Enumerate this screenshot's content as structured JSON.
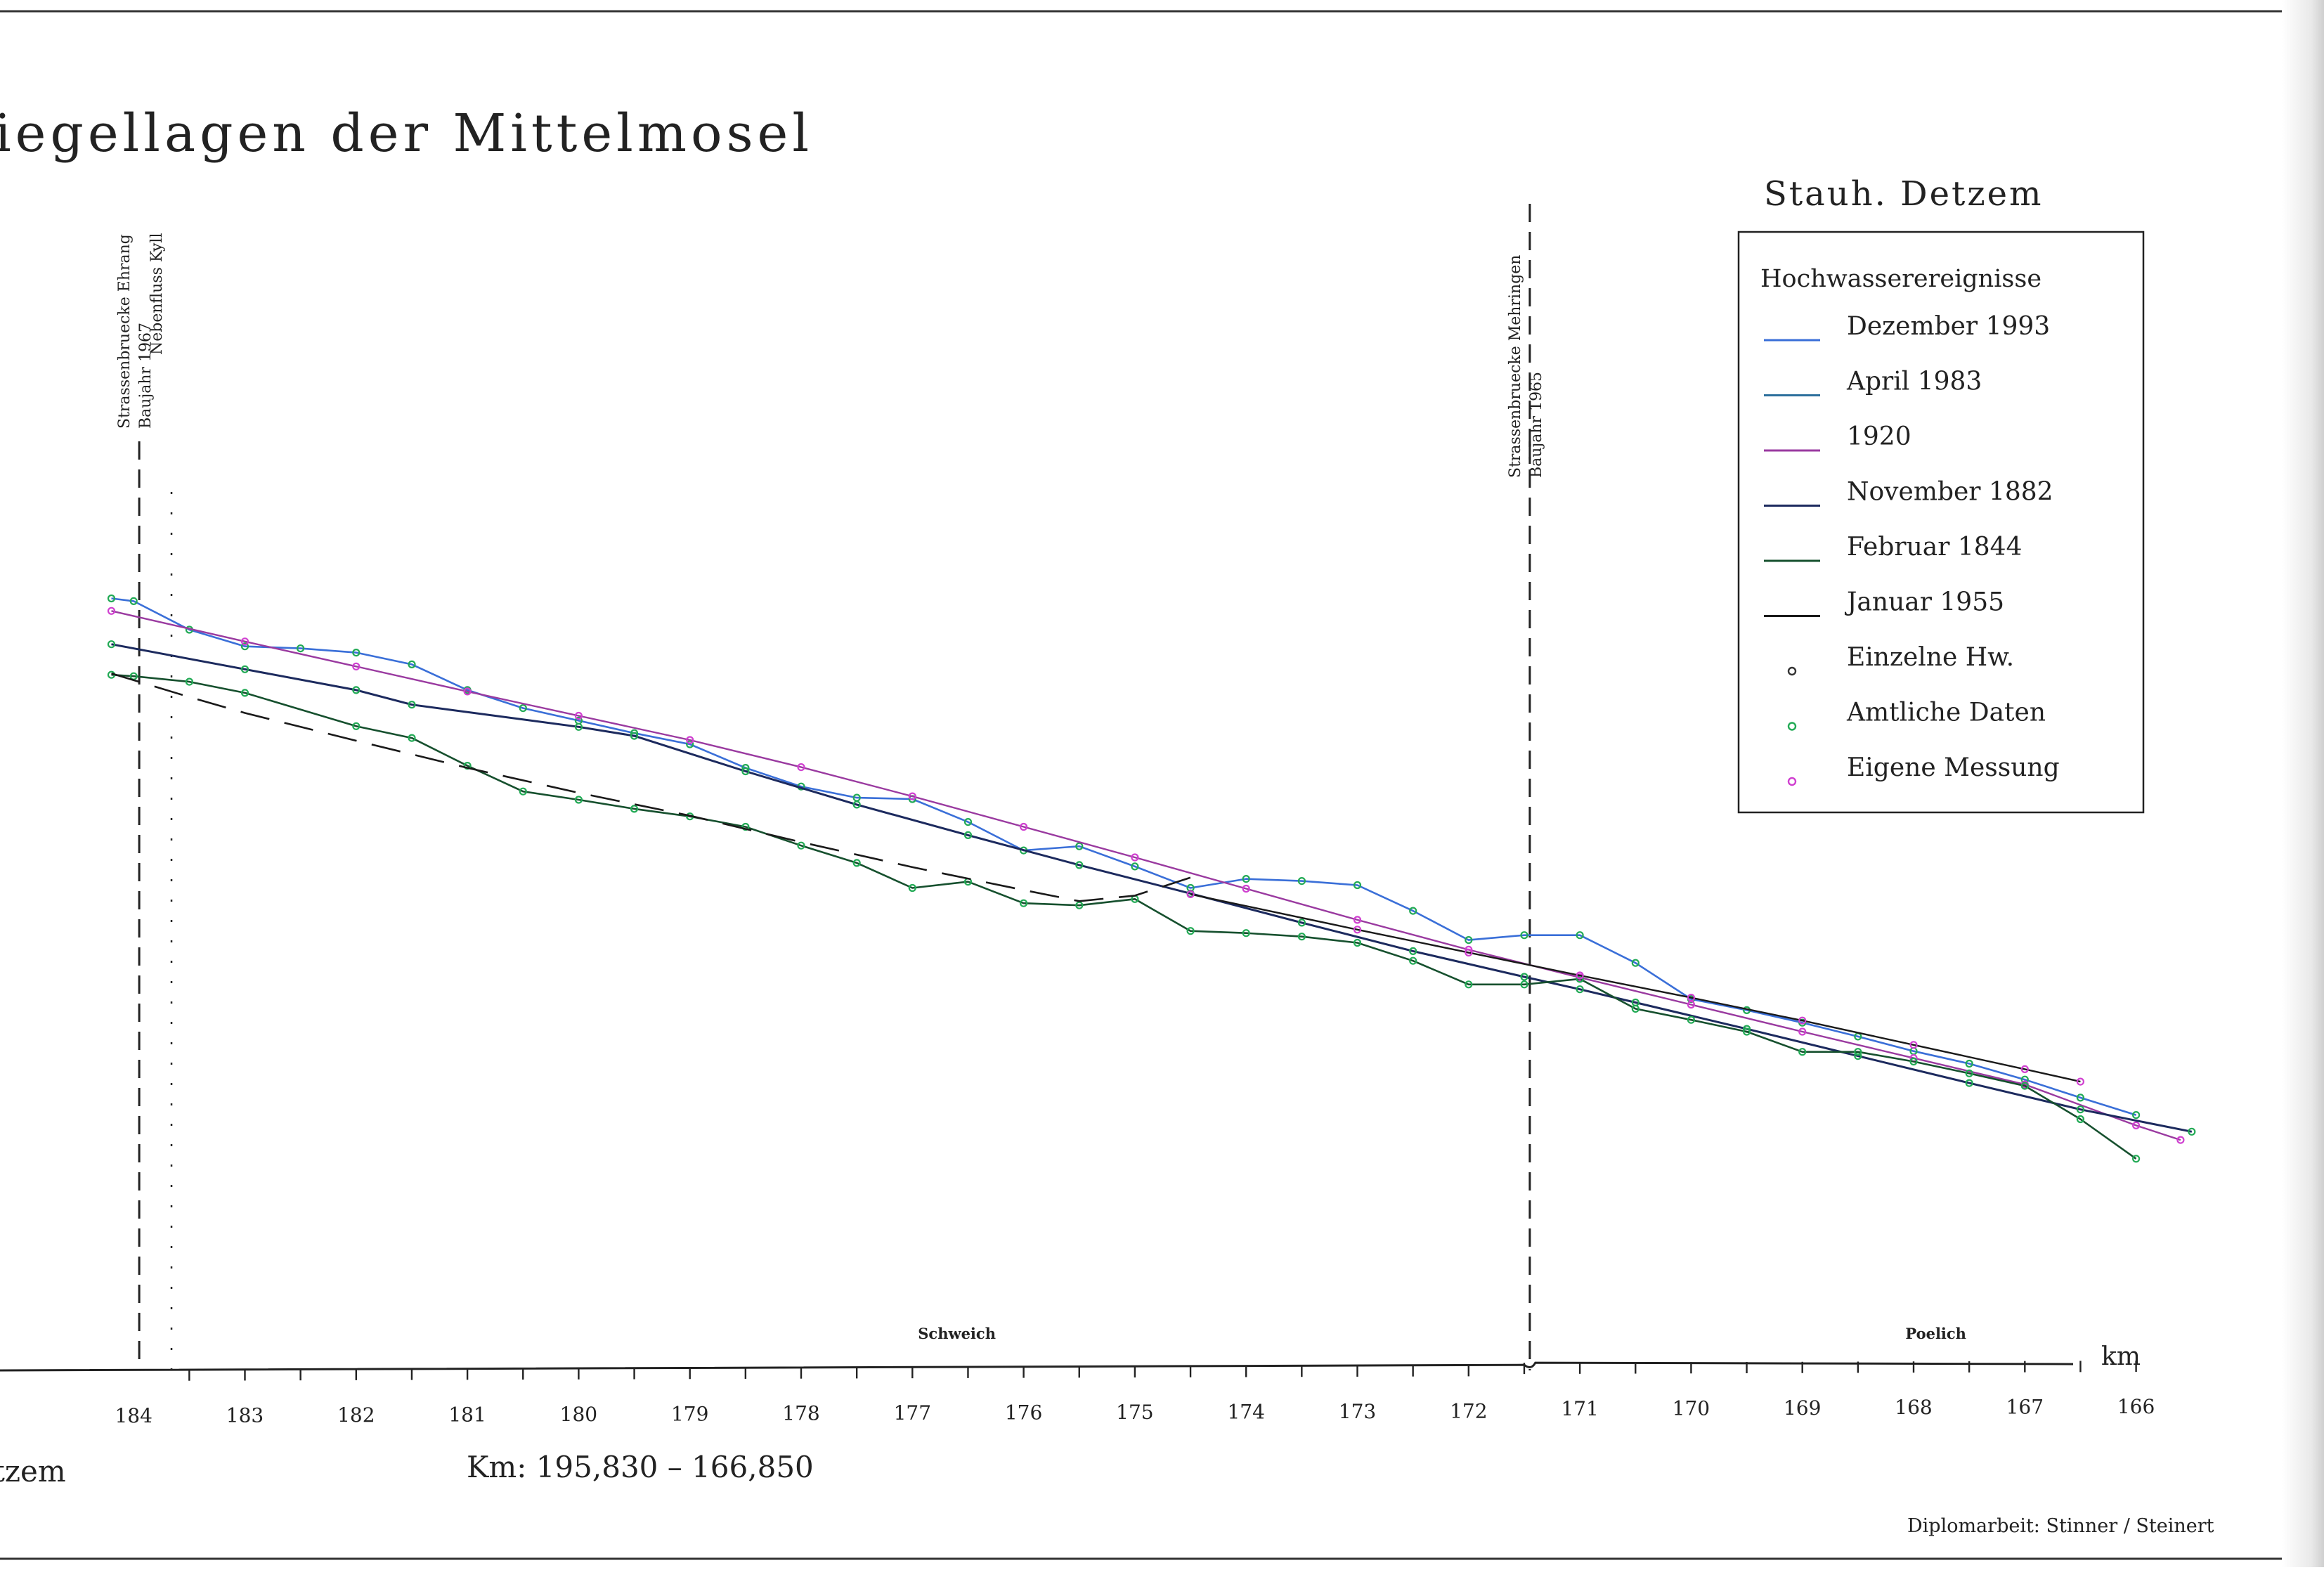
{
  "title": "iegellagen der Mittelmosel",
  "station_title": "Stauh. Detzem",
  "footer_left": "tzem",
  "km_range": "Km: 195,830 – 166,850",
  "credit": "Diplomarbeit: Stinner / Steinert",
  "axis_unit": "km",
  "places": [
    {
      "label": "Schweich",
      "km": 176.6
    },
    {
      "label": "Poelich",
      "km": 167.8
    }
  ],
  "landmarks": [
    {
      "id": "ehrang",
      "km": 183.95,
      "line1": "Strassenbruecke Ehrang",
      "line2": "Baujahr 1967",
      "style": "dashed"
    },
    {
      "id": "kyll",
      "km": 183.66,
      "line1": "Nebenfluss Kyll",
      "line2": "",
      "style": "dotted"
    },
    {
      "id": "mehring",
      "km": 171.45,
      "line1": "Strassenbruecke Mehringen",
      "line2": "Baujahr 1965",
      "style": "dashed"
    }
  ],
  "legend": {
    "title": "Hochwasserereignisse",
    "entries": [
      {
        "label": "Dezember 1993",
        "kind": "line",
        "color": "#3a6fd8"
      },
      {
        "label": "April 1983",
        "kind": "line",
        "color": "#2c6f9c"
      },
      {
        "label": "1920",
        "kind": "line",
        "color": "#9a3aa0"
      },
      {
        "label": "November 1882",
        "kind": "line",
        "color": "#1c2a5e"
      },
      {
        "label": "Februar 1844",
        "kind": "line",
        "color": "#16502e"
      },
      {
        "label": "Januar 1955",
        "kind": "line",
        "color": "#1a1a1a"
      },
      {
        "label": "Einzelne Hw.",
        "kind": "marker",
        "color": "#333333"
      },
      {
        "label": "Amtliche Daten",
        "kind": "marker",
        "color": "#22aa55"
      },
      {
        "label": "Eigene Messung",
        "kind": "marker",
        "color": "#d040d0"
      }
    ]
  },
  "chart_data": {
    "type": "line",
    "title": "iegellagen der Mittelmosel",
    "xlabel": "km",
    "ylabel": "",
    "x_reversed": true,
    "xlim": [
      184.2,
      165.6
    ],
    "ylim": [
      0,
      100
    ],
    "x_ticks": [
      "184",
      "183",
      "182",
      "181",
      "180",
      "179",
      "178",
      "177",
      "176",
      "175",
      "174",
      "173",
      "172",
      "171",
      "170",
      "169",
      "168",
      "167",
      "166"
    ],
    "grid": false,
    "legend_position": "top-right",
    "series": [
      {
        "name": "Dezember 1993",
        "color": "#3a6fd8",
        "width": 2.6,
        "markers": "amtlich",
        "x": [
          184.2,
          184.0,
          183.5,
          183.0,
          182.5,
          182.0,
          181.5,
          181.0,
          180.5,
          180.0,
          179.5,
          179.0,
          178.5,
          178.0,
          177.5,
          177.0,
          176.5,
          176.0,
          175.5,
          175.0,
          174.5,
          174.0,
          173.5,
          173.0,
          172.5,
          172.0,
          171.5,
          171.0,
          170.5,
          170.0,
          169.5,
          169.0,
          168.5,
          168.0,
          167.5,
          167.0,
          166.5,
          166.0
        ],
        "y": [
          75.8,
          75.4,
          71.3,
          68.9,
          68.6,
          68.0,
          66.3,
          62.6,
          60.0,
          58.2,
          56.4,
          54.8,
          51.4,
          48.7,
          47.1,
          46.9,
          43.6,
          39.5,
          40.1,
          37.2,
          34.1,
          35.4,
          35.1,
          34.5,
          30.8,
          26.6,
          27.3,
          27.3,
          23.3,
          18.1,
          16.5,
          14.7,
          12.7,
          10.6,
          8.8,
          6.5,
          3.9,
          1.4
        ]
      },
      {
        "name": "1920",
        "color": "#9a3aa0",
        "width": 2.4,
        "markers": "eigene",
        "x": [
          184.2,
          183.0,
          182.0,
          181.0,
          180.0,
          179.0,
          178.0,
          177.0,
          176.0,
          175.0,
          174.0,
          173.0,
          172.0,
          171.0,
          170.0,
          169.0,
          168.0,
          167.0,
          166.0,
          165.6
        ],
        "y": [
          74.0,
          69.6,
          66.0,
          62.4,
          58.9,
          55.4,
          51.5,
          47.3,
          42.9,
          38.5,
          34.0,
          29.5,
          25.2,
          21.2,
          17.3,
          13.4,
          9.6,
          5.8,
          -0.1,
          -2.2
        ]
      },
      {
        "name": "November 1882",
        "color": "#1c2a5e",
        "width": 3.0,
        "markers": "amtlich",
        "x": [
          184.2,
          183.0,
          182.0,
          181.5,
          180.0,
          179.5,
          178.5,
          177.5,
          176.5,
          175.5,
          174.5,
          173.5,
          172.5,
          171.5,
          171.0,
          170.5,
          169.5,
          168.5,
          167.5,
          166.5,
          165.5
        ],
        "y": [
          69.2,
          65.6,
          62.6,
          60.5,
          57.3,
          56.0,
          50.9,
          46.1,
          41.7,
          37.4,
          33.3,
          29.1,
          25.0,
          21.3,
          19.5,
          17.6,
          13.8,
          9.9,
          6.0,
          2.2,
          -1.0
        ]
      },
      {
        "name": "Februar 1844",
        "color": "#16502e",
        "width": 2.6,
        "markers": "amtlich",
        "x": [
          184.2,
          184.0,
          183.5,
          183.0,
          182.0,
          181.5,
          181.0,
          180.5,
          180.0,
          179.5,
          179.0,
          178.5,
          178.0,
          177.5,
          177.0,
          176.5,
          176.0,
          175.5,
          175.0,
          174.5,
          174.0,
          173.5,
          173.0,
          172.5,
          172.0,
          171.5,
          171.0,
          170.5,
          170.0,
          169.5,
          169.0,
          168.5,
          168.0,
          167.5,
          167.0,
          166.5,
          166.0
        ],
        "y": [
          64.8,
          64.6,
          63.8,
          62.2,
          57.4,
          55.7,
          51.7,
          48.0,
          46.8,
          45.5,
          44.4,
          42.9,
          40.2,
          37.7,
          34.1,
          35.0,
          31.9,
          31.6,
          32.5,
          27.9,
          27.6,
          27.1,
          26.2,
          23.6,
          20.2,
          20.2,
          21.0,
          16.7,
          15.1,
          13.4,
          10.5,
          10.5,
          9.1,
          7.4,
          5.6,
          0.8,
          -4.9
        ]
      },
      {
        "name": "Januar 1955",
        "color": "#1a1a1a",
        "width": 2.4,
        "markers": "eigene",
        "x": [
          174.5,
          173.0,
          172.0,
          171.0,
          170.0,
          169.0,
          168.0,
          167.0,
          166.5
        ],
        "y": [
          33.2,
          28.1,
          24.8,
          21.5,
          18.3,
          15.0,
          11.5,
          8.0,
          6.2
        ]
      },
      {
        "name": "",
        "color": "#1a1a1a",
        "width": 2.6,
        "dash": true,
        "markers": "none",
        "x": [
          184.2,
          183.5,
          183.0,
          182.0,
          181.0,
          180.0,
          179.0,
          178.0,
          177.0,
          176.0,
          175.5,
          175.0,
          174.5
        ],
        "y": [
          65.0,
          61.6,
          59.3,
          55.3,
          51.4,
          47.8,
          44.5,
          40.7,
          37.1,
          33.8,
          32.2,
          33.0,
          35.6
        ]
      }
    ]
  }
}
